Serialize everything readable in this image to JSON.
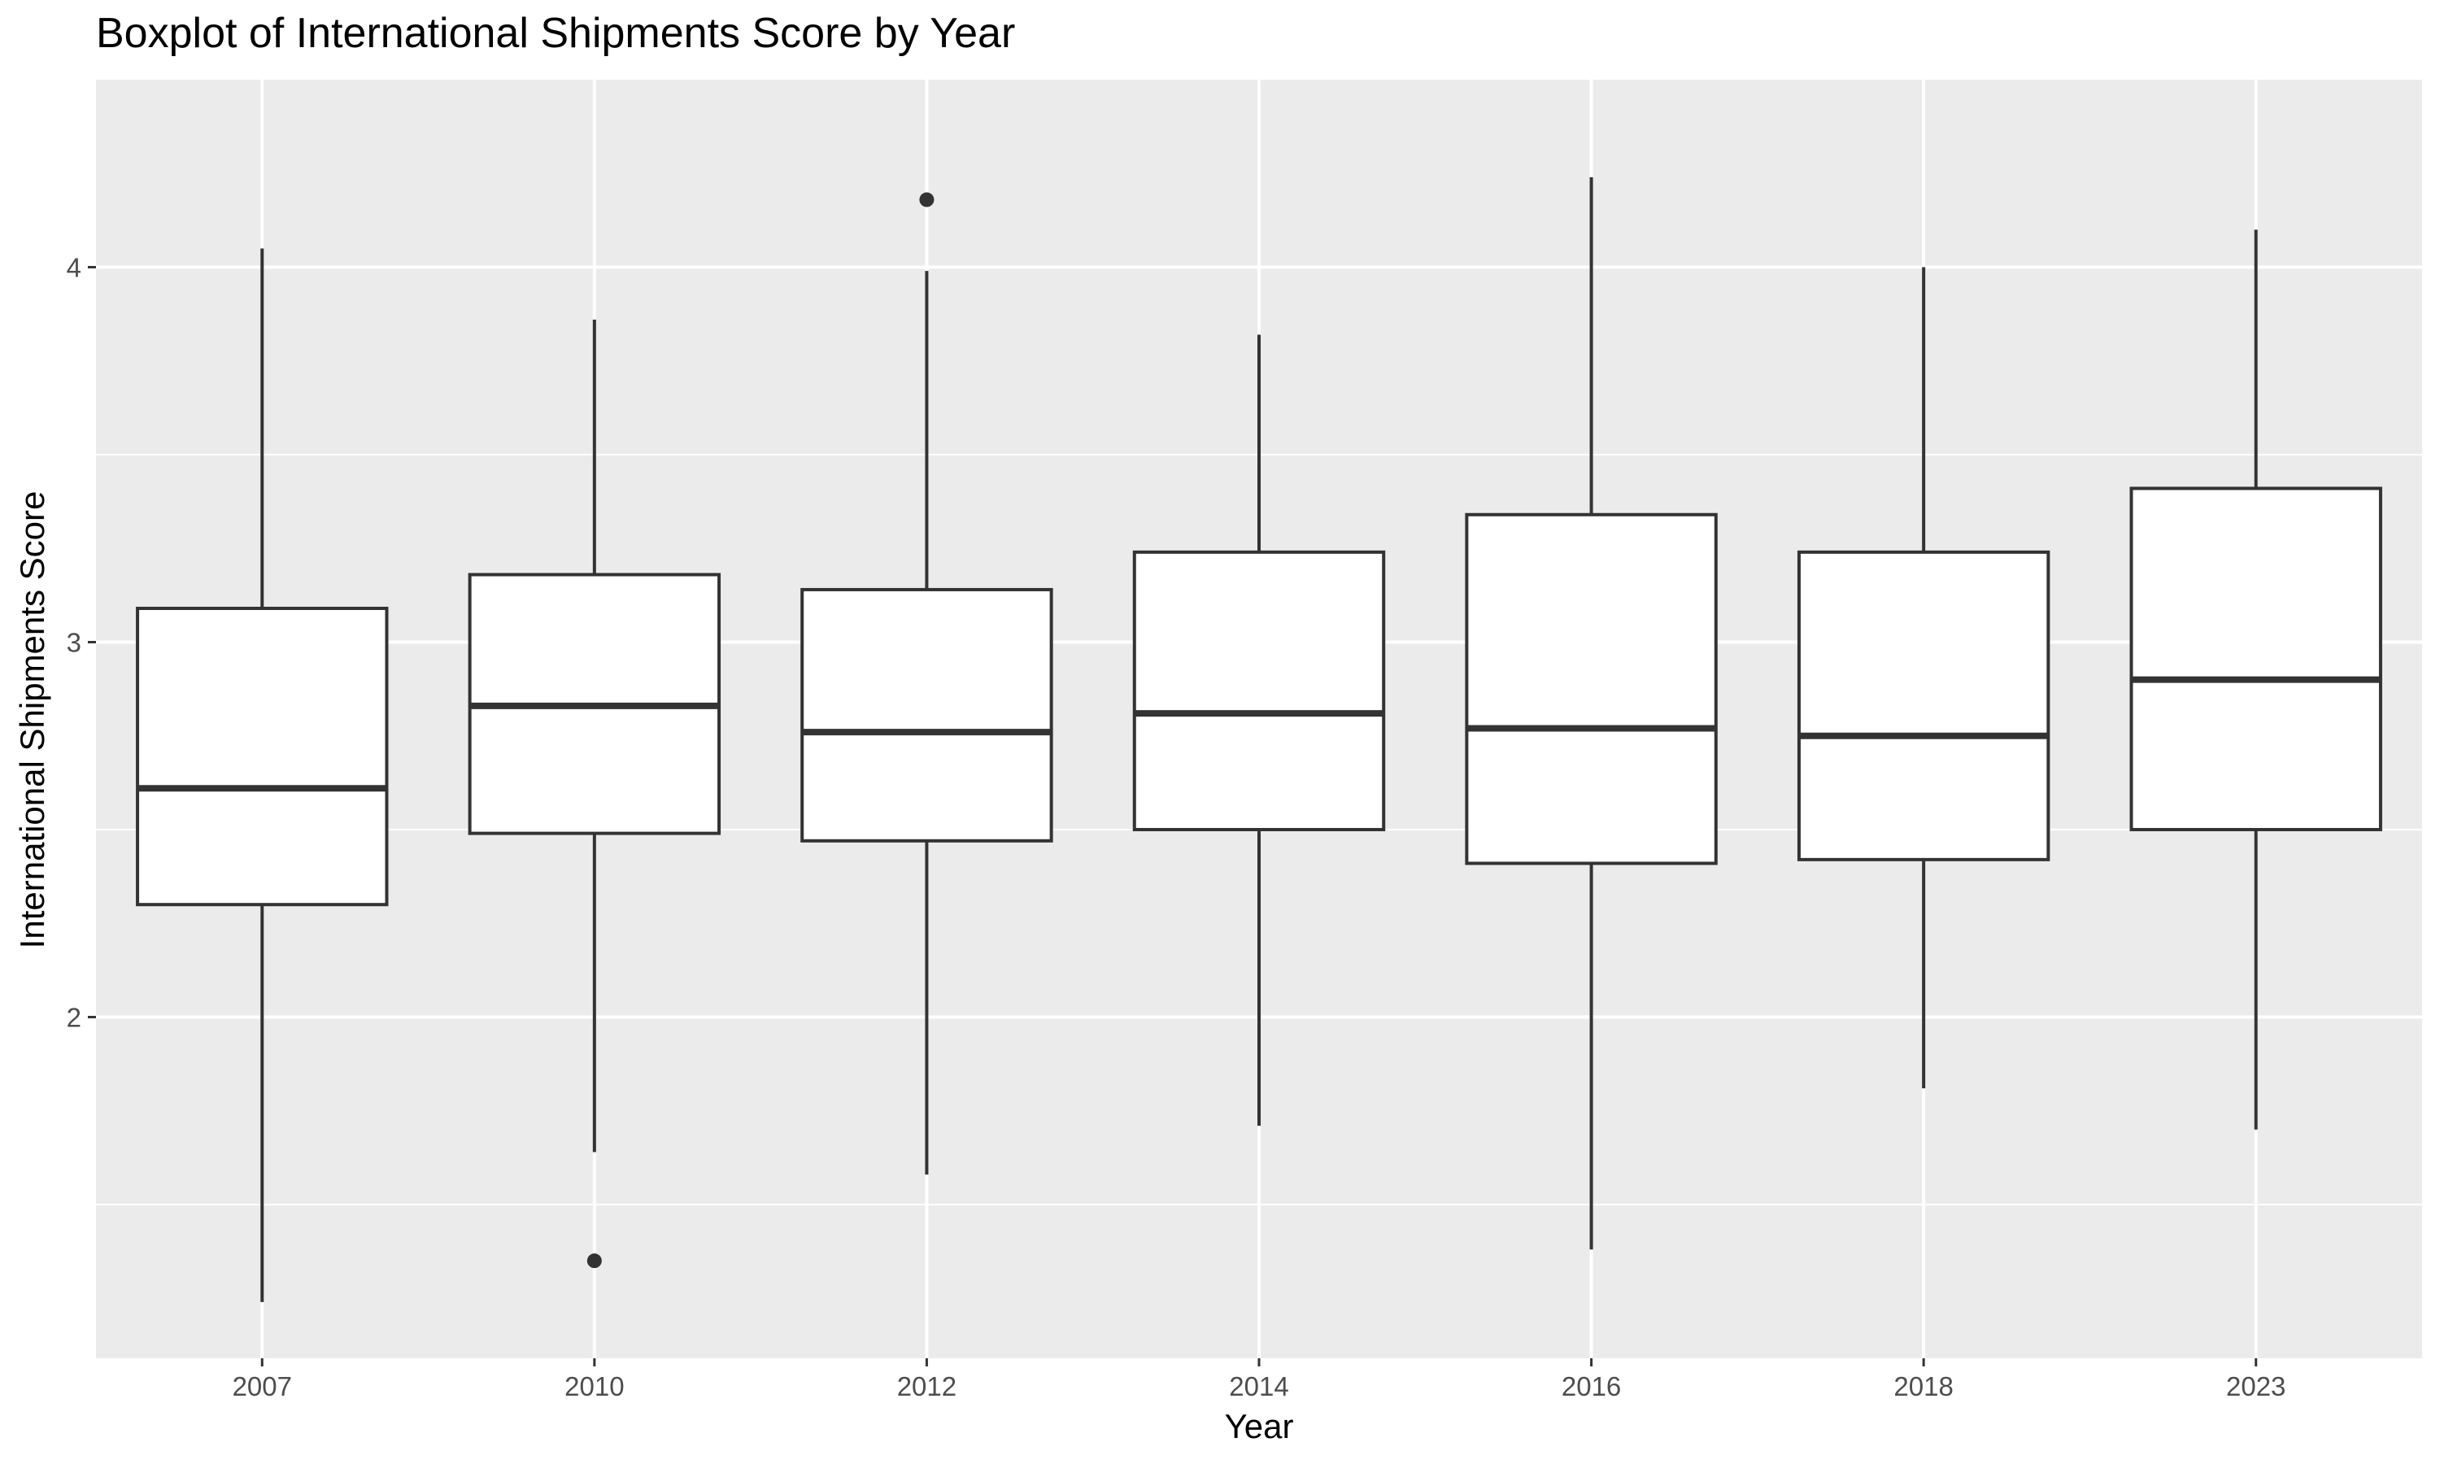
{
  "chart_data": {
    "type": "boxplot",
    "title": "Boxplot of International Shipments Score by Year",
    "xlabel": "Year",
    "ylabel": "International Shipments Score",
    "categories": [
      "2007",
      "2010",
      "2012",
      "2014",
      "2016",
      "2018",
      "2023"
    ],
    "ylim": [
      1.09,
      4.5
    ],
    "yticks": [
      2,
      3,
      4
    ],
    "y_minor_gridlines": [
      1.5,
      2.5,
      3.5
    ],
    "grid": true,
    "legend": "none",
    "boxes": [
      {
        "category": "2007",
        "lower_whisker": 1.24,
        "q1": 2.3,
        "median": 2.61,
        "q3": 3.09,
        "upper_whisker": 4.05,
        "outliers": []
      },
      {
        "category": "2010",
        "lower_whisker": 1.64,
        "q1": 2.49,
        "median": 2.83,
        "q3": 3.18,
        "upper_whisker": 3.86,
        "outliers": [
          1.35
        ]
      },
      {
        "category": "2012",
        "lower_whisker": 1.58,
        "q1": 2.47,
        "median": 2.76,
        "q3": 3.14,
        "upper_whisker": 3.99,
        "outliers": [
          4.18
        ]
      },
      {
        "category": "2014",
        "lower_whisker": 1.71,
        "q1": 2.5,
        "median": 2.81,
        "q3": 3.24,
        "upper_whisker": 3.82,
        "outliers": []
      },
      {
        "category": "2016",
        "lower_whisker": 1.38,
        "q1": 2.41,
        "median": 2.77,
        "q3": 3.34,
        "upper_whisker": 4.24,
        "outliers": []
      },
      {
        "category": "2018",
        "lower_whisker": 1.81,
        "q1": 2.42,
        "median": 2.75,
        "q3": 3.24,
        "upper_whisker": 4.0,
        "outliers": []
      },
      {
        "category": "2023",
        "lower_whisker": 1.7,
        "q1": 2.5,
        "median": 2.9,
        "q3": 3.41,
        "upper_whisker": 4.1,
        "outliers": []
      }
    ],
    "colors": {
      "panel_background": "#ebebeb",
      "gridline": "#ffffff",
      "box_fill": "#ffffff",
      "box_stroke": "#333333",
      "tick_text": "#4d4d4d",
      "title_text": "#000000"
    }
  }
}
